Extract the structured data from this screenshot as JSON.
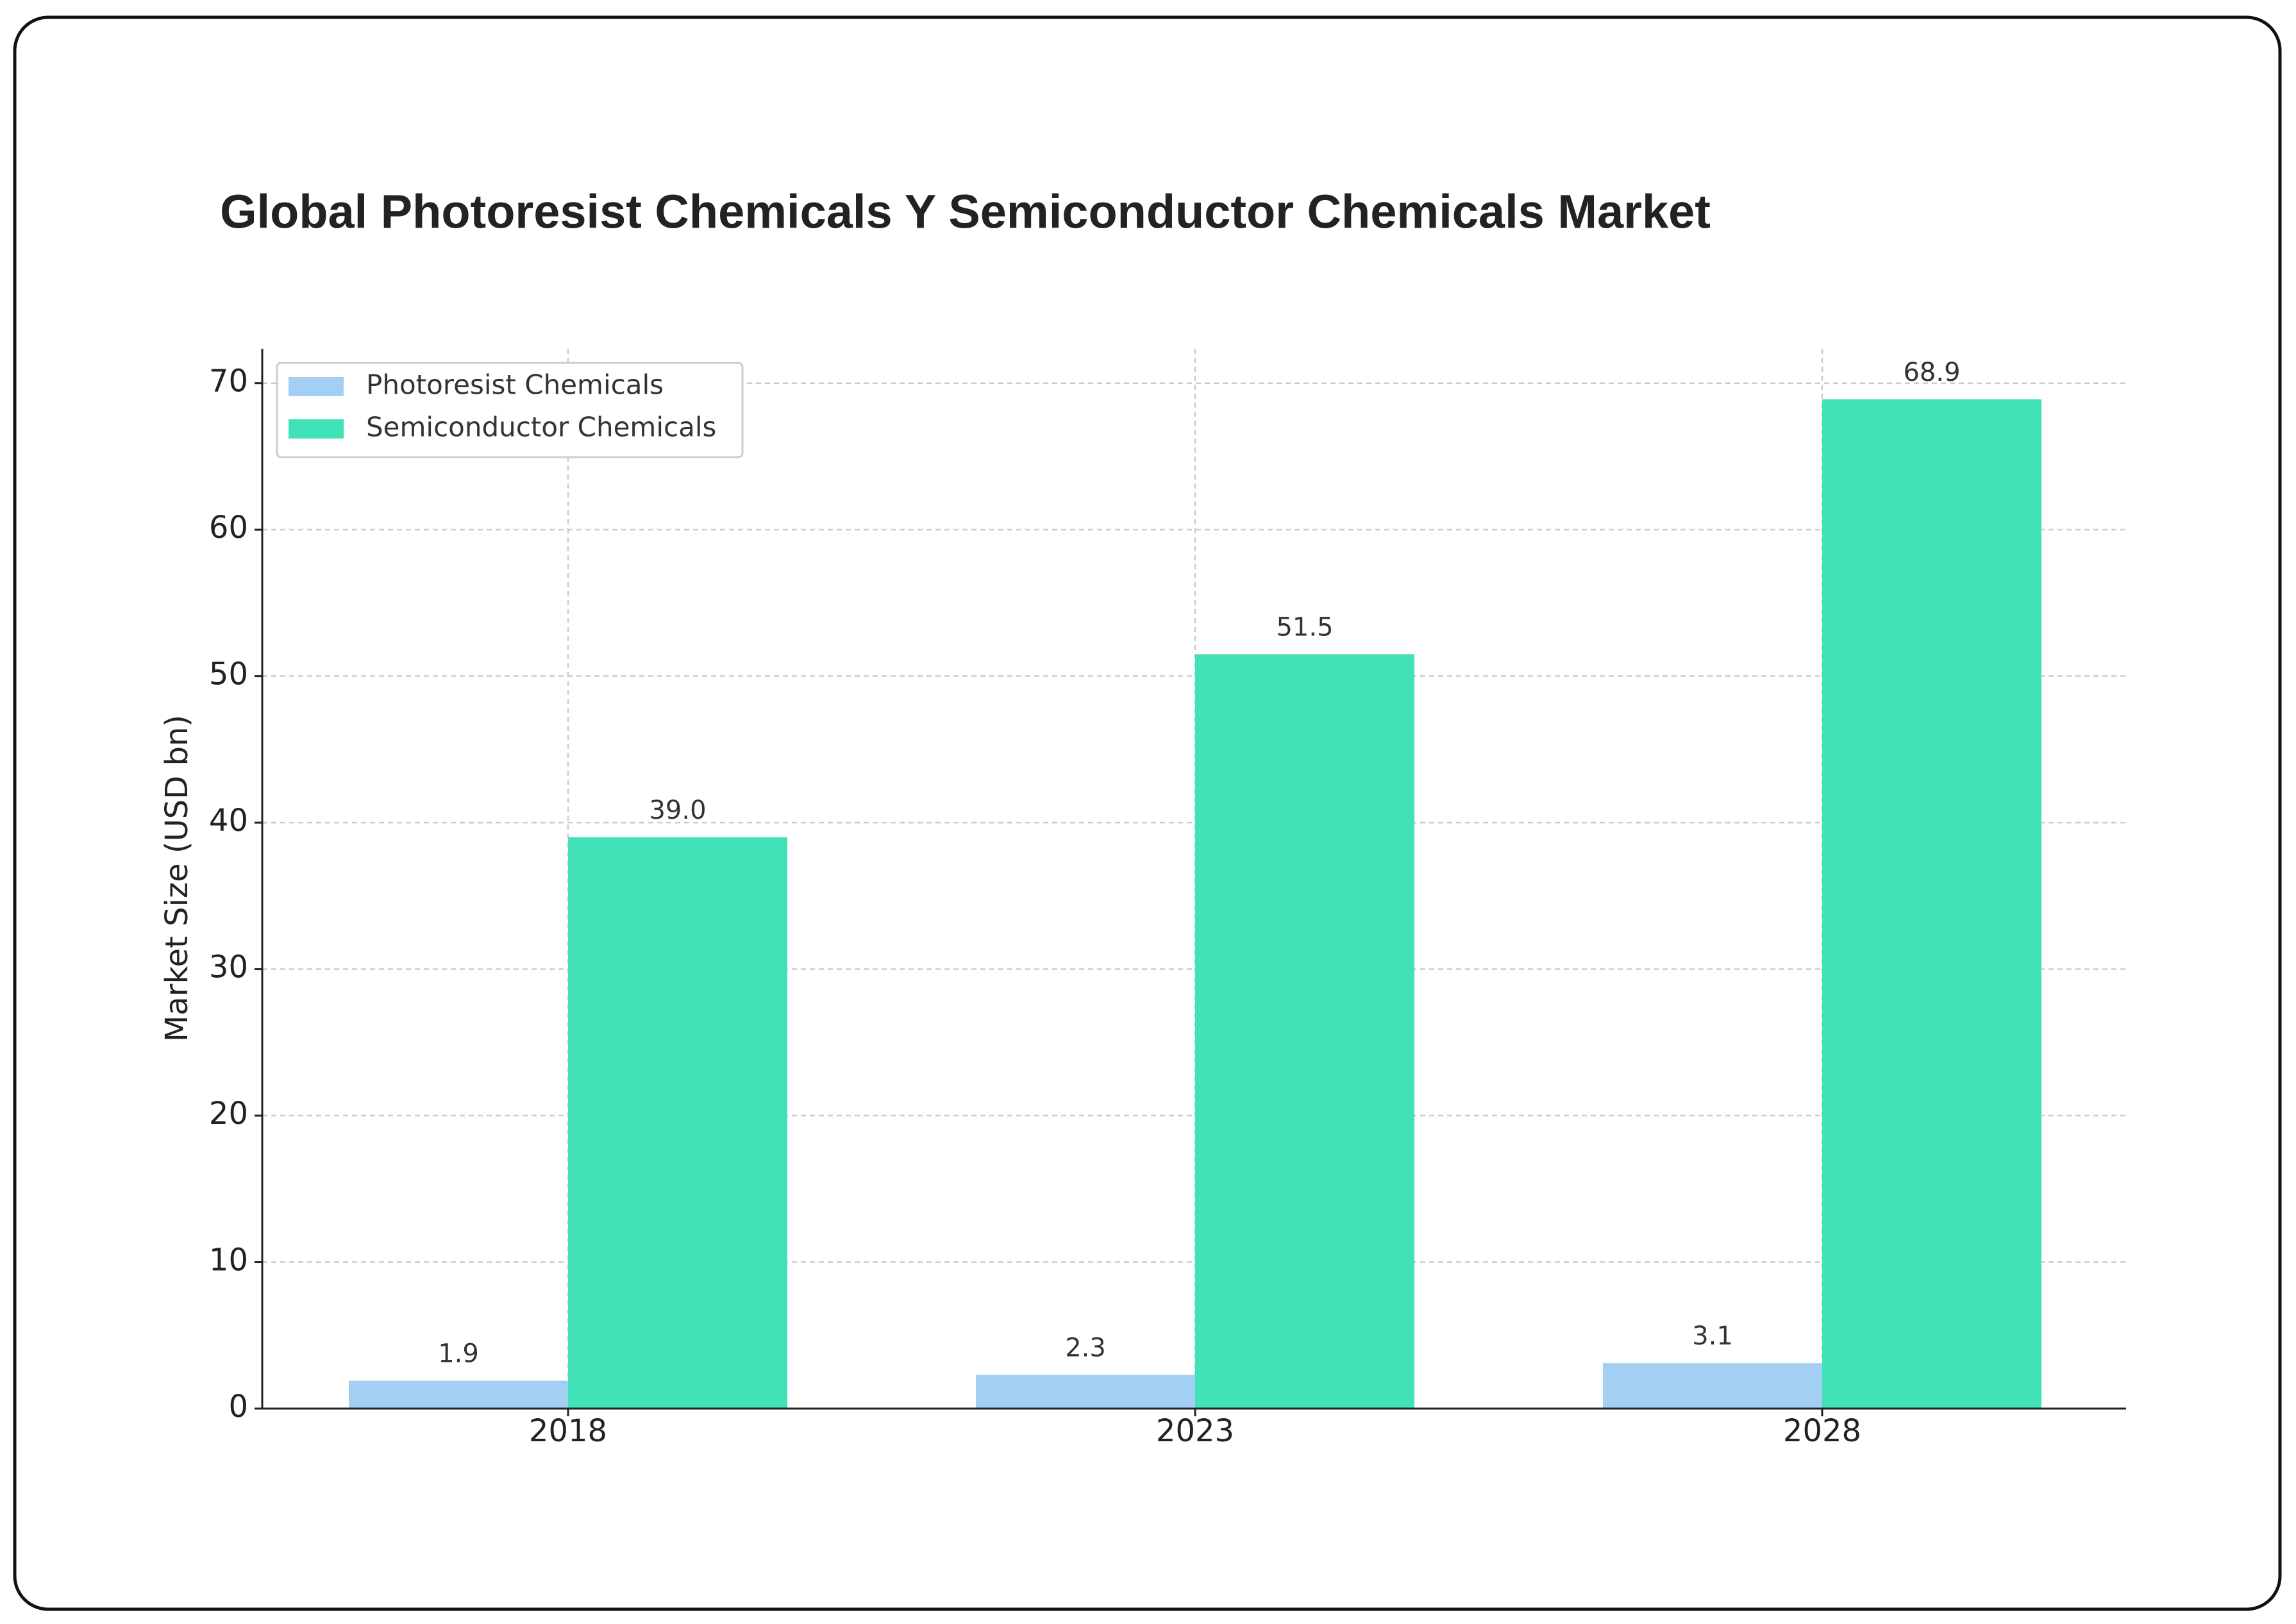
{
  "chart_data": {
    "type": "bar",
    "title": "Global Photoresist Chemicals Y Semiconductor Chemicals Market",
    "y_label": "Market Size (USD bn)",
    "categories": [
      "2018",
      "2023",
      "2028"
    ],
    "series": [
      {
        "name": "Photoresist Chemicals",
        "color": "#a3cff5",
        "values": [
          1.9,
          2.3,
          3.1
        ],
        "value_labels": [
          "1.9",
          "2.3",
          "3.1"
        ]
      },
      {
        "name": "Semiconductor Chemicals",
        "color": "#41e2b8",
        "values": [
          39.0,
          51.5,
          68.9
        ],
        "value_labels": [
          "39.0",
          "51.5",
          "68.9"
        ]
      }
    ],
    "ylim": [
      0,
      72.35
    ],
    "yticks": [
      0,
      10,
      20,
      30,
      40,
      50,
      60,
      70
    ],
    "grid": true,
    "legend": "upper left"
  }
}
